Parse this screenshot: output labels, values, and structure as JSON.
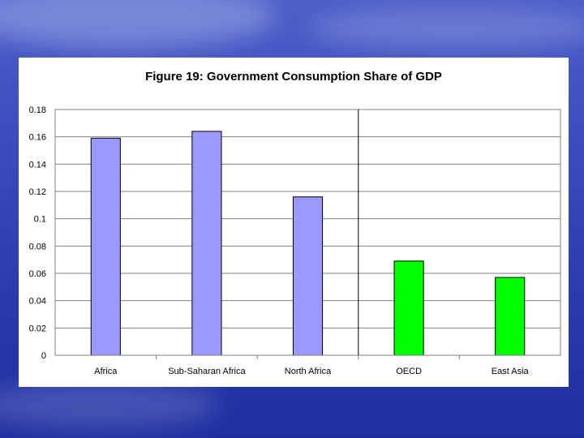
{
  "chart_data": {
    "type": "bar",
    "title": "Figure 19: Government Consumption Share of GDP",
    "categories": [
      "Africa",
      "Sub-Saharan Africa",
      "North Africa",
      "OECD",
      "East Asia"
    ],
    "values": [
      0.159,
      0.164,
      0.116,
      0.069,
      0.057
    ],
    "bar_colors": [
      "#9999ff",
      "#9999ff",
      "#9999ff",
      "#00ff00",
      "#00ff00"
    ],
    "ylim": [
      0,
      0.18
    ],
    "yticks": [
      0,
      0.02,
      0.04,
      0.06,
      0.08,
      0.1,
      0.12,
      0.14,
      0.16,
      0.18
    ],
    "ytick_labels": [
      "0",
      "0.02",
      "0.04",
      "0.06",
      "0.08",
      "0.1",
      "0.12",
      "0.14",
      "0.16",
      "0.18"
    ],
    "grid": true,
    "xlabel": "",
    "ylabel": "",
    "separator_after_category": 3
  }
}
